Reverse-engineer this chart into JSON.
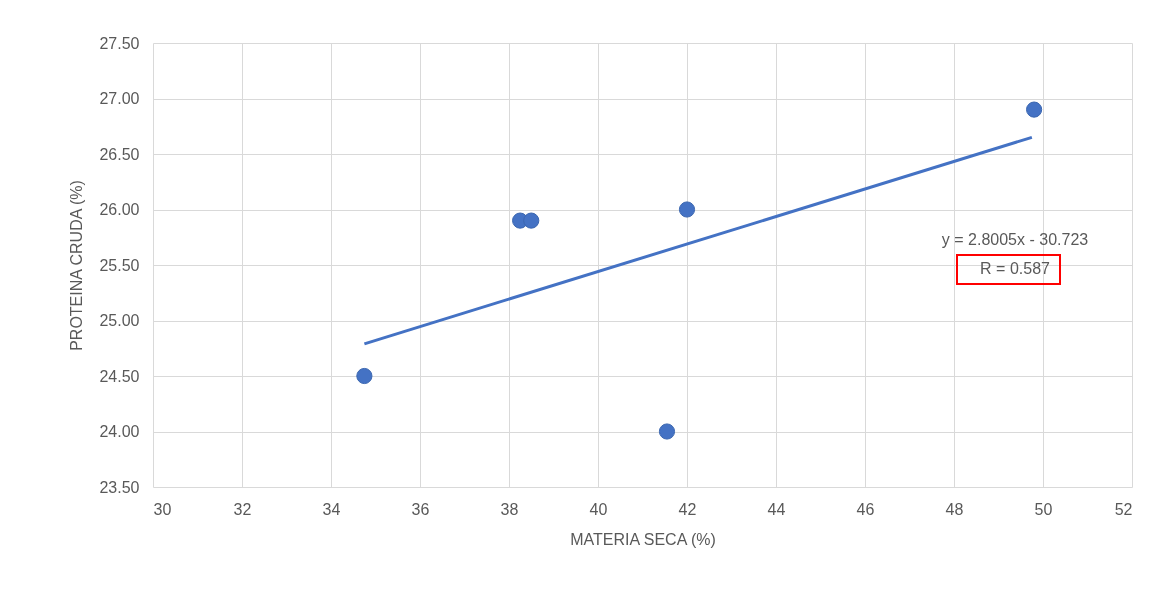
{
  "chart_data": {
    "type": "scatter",
    "xlabel": "MATERIA SECA (%)",
    "ylabel": "PROTEINA CRUDA (%)",
    "series": [
      {
        "marker": "circle",
        "color": "#4472c4",
        "x": [
          34.75,
          38.25,
          38.5,
          42.0,
          41.55,
          49.8
        ],
        "values": [
          24.5,
          25.9,
          25.9,
          26.0,
          24.0,
          26.9
        ]
      },
      {
        "type": "line",
        "color": "#4472c4",
        "x": [
          34.75,
          49.75
        ],
        "values": [
          24.79,
          26.65
        ]
      }
    ],
    "xlim": [
      30,
      52
    ],
    "xticks": [
      30,
      32,
      34,
      36,
      38,
      40,
      42,
      44,
      46,
      48,
      50,
      52
    ],
    "ylim": [
      23.5,
      27.5
    ],
    "yticks": [
      {
        "value": 23.5,
        "label": "23.50"
      },
      {
        "value": 24,
        "label": "24.00"
      },
      {
        "value": 24.5,
        "label": "24.50"
      },
      {
        "value": 25,
        "label": "25.00"
      },
      {
        "value": 25.5,
        "label": "25.50"
      },
      {
        "value": 26,
        "label": "26.00"
      },
      {
        "value": 26.5,
        "label": "26.50"
      },
      {
        "value": 27,
        "label": "27.00"
      },
      {
        "value": 27.5,
        "label": "27.50"
      }
    ],
    "annotations": [
      "y = 2.8005x - 30.723",
      "R = 0.587"
    ],
    "grid": true
  }
}
